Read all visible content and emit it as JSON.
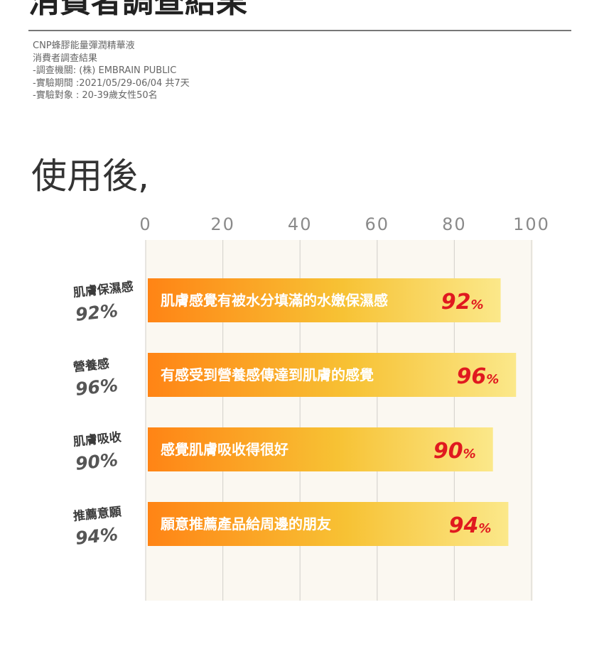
{
  "header": {
    "title": "消費者調查結果",
    "info_lines": [
      "CNP蜂膠能量彈潤精華液",
      "消費者調查結果",
      "-調查機關: (株)  EMBRAIN PUBLIC",
      "-實驗期間 :2021/05/29-06/04 共7天",
      "-實驗對象 : 20-39歲女性50名"
    ]
  },
  "section_title": "使用後,",
  "colors": {
    "bar_gradient": [
      "#ff8415",
      "#f7c234",
      "#fbe88a"
    ],
    "value_red": "#e0191f",
    "plot_bg": "#fbf8f1",
    "grid": "#d8d6d0"
  },
  "chart_data": {
    "type": "bar",
    "orientation": "horizontal",
    "x_ticks": [
      0,
      20,
      40,
      60,
      80,
      100
    ],
    "xlim": [
      0,
      100
    ],
    "grid": true,
    "unit": "%",
    "categories": [
      "肌膚保濕感",
      "營養感",
      "肌膚吸收",
      "推薦意願"
    ],
    "category_pct_labels": [
      "92%",
      "96%",
      "90%",
      "94%"
    ],
    "values": [
      92,
      96,
      90,
      94
    ],
    "bar_texts": [
      "肌膚感覺有被水分填滿的水嫩保濕感",
      "有感受到營養感傳達到肌膚的感覺",
      "感覺肌膚吸收得很好",
      "願意推薦產品給周邊的朋友"
    ]
  }
}
